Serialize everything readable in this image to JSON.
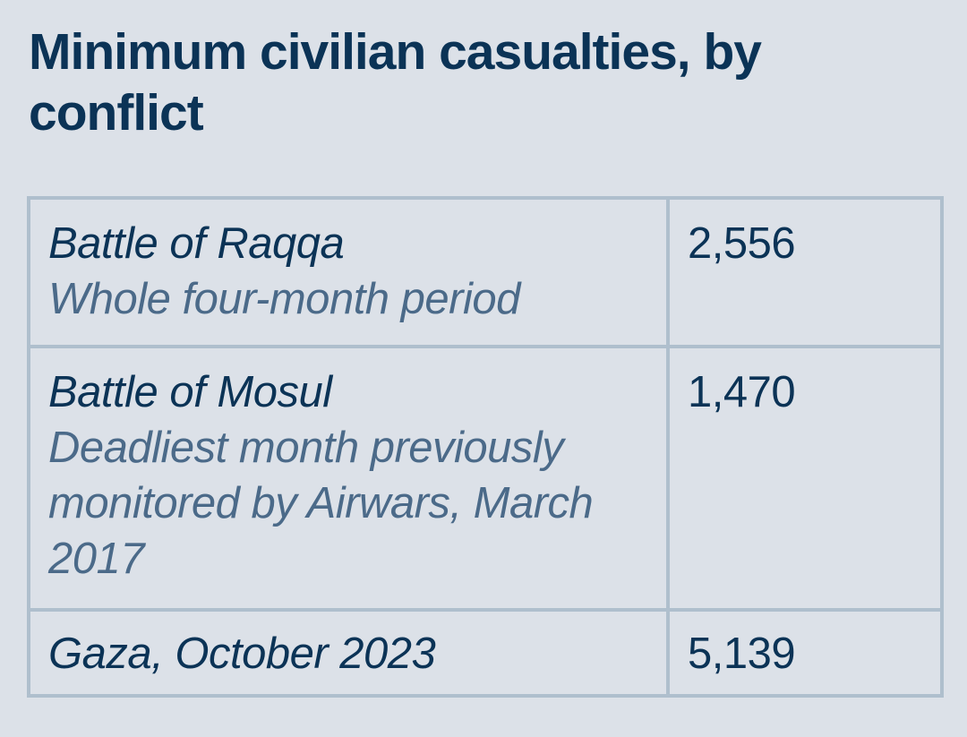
{
  "title": "Minimum civilian casualties, by conflict",
  "chart_data": {
    "type": "table",
    "title": "Minimum civilian casualties, by conflict",
    "rows": [
      {
        "conflict": "Battle of Raqqa",
        "note": "Whole four-month period",
        "value": "2,556"
      },
      {
        "conflict": "Battle of Mosul",
        "note": "Deadliest month previously monitored by Airwars, March 2017",
        "value": "1,470"
      },
      {
        "conflict": "Gaza, October 2023",
        "note": "",
        "value": "5,139"
      }
    ]
  },
  "colors": {
    "background": "#dce1e8",
    "text": "#0b3356",
    "note_text": "#4b6a89",
    "border": "#afbfcd"
  }
}
